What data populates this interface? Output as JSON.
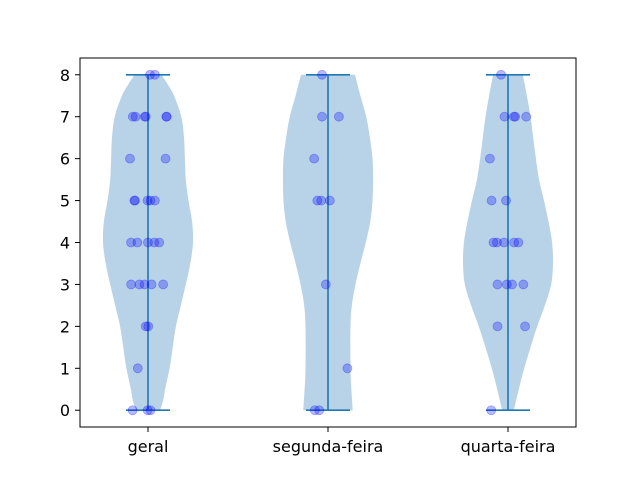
{
  "chart_data": {
    "type": "violin",
    "title": "",
    "xlabel": "",
    "ylabel": "",
    "ylim": [
      -0.4,
      8.4
    ],
    "yticks": [
      0,
      1,
      2,
      3,
      4,
      5,
      6,
      7,
      8
    ],
    "categories": [
      "geral",
      "segunda-feira",
      "quarta-feira"
    ],
    "grid": false,
    "colors": {
      "violin_fill": "#b8d3e8",
      "violin_line": "#1f77b4",
      "points": "#0000ff"
    },
    "series": [
      {
        "category": "geral",
        "points": [
          0,
          0,
          0,
          1,
          2,
          2,
          3,
          3,
          3,
          3,
          3,
          4,
          4,
          4,
          4,
          4,
          5,
          5,
          5,
          5,
          5,
          6,
          6,
          7,
          7,
          7,
          7,
          7,
          7,
          8,
          8
        ],
        "density": [
          [
            0,
            0.27
          ],
          [
            0.25,
            0.34
          ],
          [
            0.5,
            0.38
          ],
          [
            1,
            0.48
          ],
          [
            1.5,
            0.55
          ],
          [
            2,
            0.62
          ],
          [
            2.5,
            0.73
          ],
          [
            3,
            0.84
          ],
          [
            3.5,
            0.94
          ],
          [
            4,
            1.0
          ],
          [
            4.5,
            0.98
          ],
          [
            5,
            0.9
          ],
          [
            5.5,
            0.84
          ],
          [
            6,
            0.82
          ],
          [
            6.5,
            0.8
          ],
          [
            7,
            0.74
          ],
          [
            7.5,
            0.58
          ],
          [
            7.75,
            0.45
          ],
          [
            8,
            0.3
          ]
        ]
      },
      {
        "category": "segunda-feira",
        "points": [
          0,
          0,
          1,
          3,
          5,
          5,
          5,
          6,
          7,
          7,
          8
        ],
        "density": [
          [
            0,
            0.55
          ],
          [
            0.5,
            0.52
          ],
          [
            1,
            0.5
          ],
          [
            2,
            0.5
          ],
          [
            2.5,
            0.53
          ],
          [
            3,
            0.61
          ],
          [
            3.5,
            0.72
          ],
          [
            4,
            0.84
          ],
          [
            4.5,
            0.94
          ],
          [
            5,
            0.99
          ],
          [
            5.5,
            1.0
          ],
          [
            6,
            0.99
          ],
          [
            6.5,
            0.93
          ],
          [
            7,
            0.85
          ],
          [
            7.5,
            0.72
          ],
          [
            8,
            0.6
          ]
        ]
      },
      {
        "category": "quarta-feira",
        "points": [
          0,
          2,
          2,
          3,
          3,
          3,
          3,
          4,
          4,
          4,
          4,
          4,
          5,
          5,
          6,
          7,
          7,
          7,
          7,
          8
        ],
        "density": [
          [
            0,
            0.13
          ],
          [
            0.5,
            0.24
          ],
          [
            1,
            0.36
          ],
          [
            1.5,
            0.5
          ],
          [
            2,
            0.65
          ],
          [
            2.5,
            0.82
          ],
          [
            3,
            0.96
          ],
          [
            3.5,
            1.0
          ],
          [
            4,
            0.98
          ],
          [
            4.5,
            0.9
          ],
          [
            5,
            0.8
          ],
          [
            5.5,
            0.69
          ],
          [
            6,
            0.62
          ],
          [
            6.5,
            0.56
          ],
          [
            7,
            0.5
          ],
          [
            7.5,
            0.42
          ],
          [
            8,
            0.33
          ]
        ]
      }
    ]
  }
}
